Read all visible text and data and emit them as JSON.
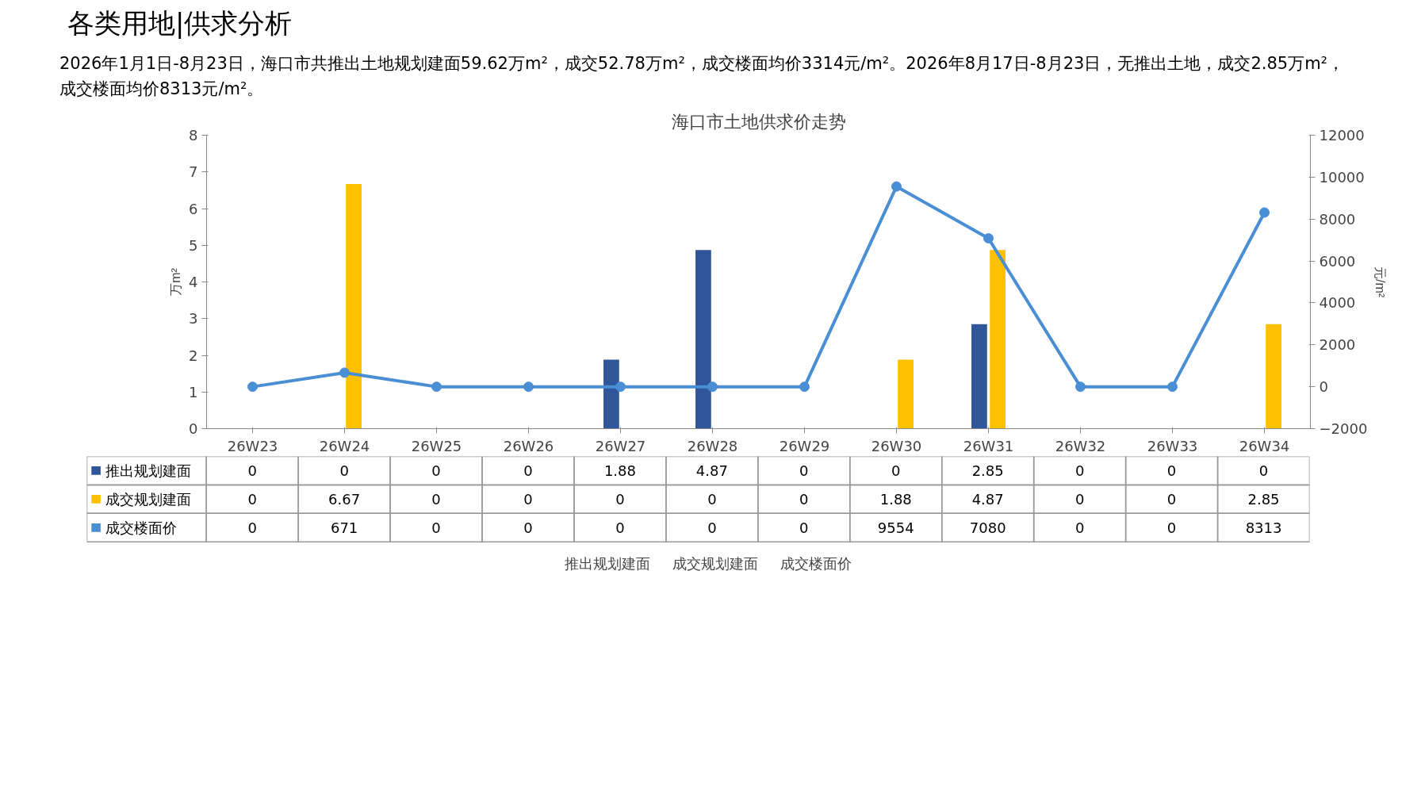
{
  "chart_data": {
    "type": "bar",
    "title": "各类用地|供求分析",
    "subtitle": "2026年1月1日-8月23日，海口市共推出土地规划建面59.62万m²，成交52.78万m²，成交楼面均价3314元/m²。2026年8月17日-8月23日，无推出土地，成交2.85万m²，成交楼面均价8313元/m²。",
    "annotations": [
      "海口市土地供求价走势"
    ],
    "ylabel": "万m²",
    "y2label": "元/m²",
    "categories": [
      "26W23",
      "26W24",
      "26W25",
      "26W26",
      "26W27",
      "26W28",
      "26W29",
      "26W30",
      "26W31",
      "26W32",
      "26W33",
      "26W34"
    ],
    "series": [
      {
        "name": "推出规划建面",
        "color": "#2f559a",
        "values": [
          0,
          0,
          0,
          0,
          1.88,
          4.87,
          0,
          0,
          2.85,
          0,
          0,
          0
        ]
      },
      {
        "name": "成交规划建面",
        "color": "#ffc000",
        "values": [
          0,
          6.67,
          0,
          0,
          0,
          0,
          0,
          1.88,
          4.87,
          0,
          0,
          2.85
        ]
      },
      {
        "name": "成交楼面价",
        "type": "line",
        "axis": "y2",
        "color": "#4a8fd4",
        "marker": "circle",
        "values": [
          0,
          671,
          0,
          0,
          0,
          0,
          0,
          9554,
          7080,
          0,
          0,
          8313
        ]
      }
    ],
    "ylim": [
      0,
      8
    ],
    "yticks": [
      0,
      1,
      2,
      3,
      4,
      5,
      6,
      7,
      8
    ],
    "y2lim": [
      -2000,
      12000
    ],
    "y2ticks": [
      -2000,
      0,
      2000,
      4000,
      6000,
      8000,
      10000,
      12000
    ],
    "data_labels": true,
    "grid": false,
    "legend": "bottom"
  }
}
